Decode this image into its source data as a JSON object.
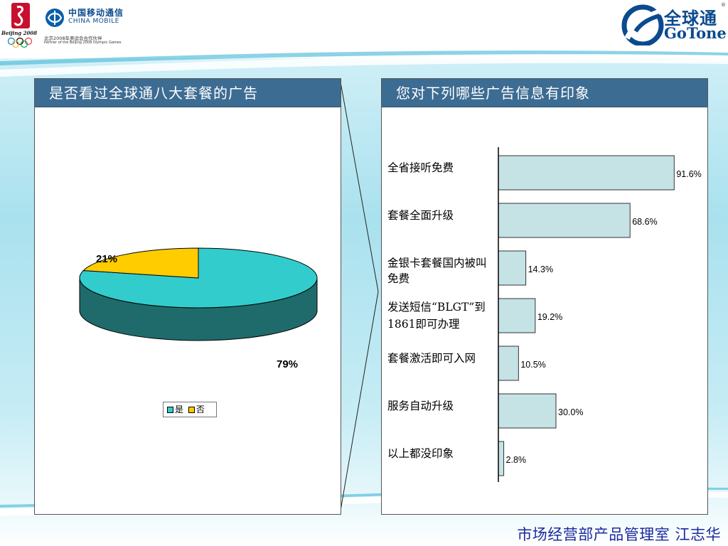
{
  "header": {
    "olympic_text": "Beijing 2008",
    "china_mobile_cn": "中国移动通信",
    "china_mobile_en": "CHINA MOBILE",
    "partner_cn": "北京2008年奥运会合作伙伴",
    "partner_en": "Partner of the Beijing 2008 Olympic Games",
    "gotone_cn": "全球通",
    "gotone_en": "GoTone",
    "reg_mark": "®"
  },
  "footer": {
    "text": "市场经营部产品管理室 江志华"
  },
  "colors": {
    "panel_header": "#3d6c93",
    "pie_yes": "#33cccc",
    "pie_yes_side": "#1f6b6b",
    "pie_no": "#ffcc00",
    "bar_fill": "#c5e3e5",
    "footer_text": "#1b2a9c"
  },
  "chart_data": [
    {
      "type": "pie",
      "title": "是否看过全球通八大套餐的广告",
      "categories": [
        "是",
        "否"
      ],
      "values": [
        79,
        21
      ],
      "labels": [
        "79%",
        "21%"
      ],
      "legend": {
        "placement": "bottom",
        "entries": [
          "是",
          "否"
        ]
      }
    },
    {
      "type": "bar",
      "orientation": "horizontal",
      "title": "您对下列哪些广告信息有印象",
      "categories": [
        "全省接听免费",
        "套餐全面升级",
        "金银卡套餐国内被叫免费",
        "发送短信“BLGT”到1861即可办理",
        "套餐激活即可入网",
        "服务自动升级",
        "以上都没印象"
      ],
      "values": [
        91.6,
        68.6,
        14.3,
        19.2,
        10.5,
        30.0,
        2.8
      ],
      "labels": [
        "91.6%",
        "68.6%",
        "14.3%",
        "19.2%",
        "10.5%",
        "30.0%",
        "2.8%"
      ],
      "xlim": [
        0,
        100
      ],
      "grid": false
    }
  ]
}
